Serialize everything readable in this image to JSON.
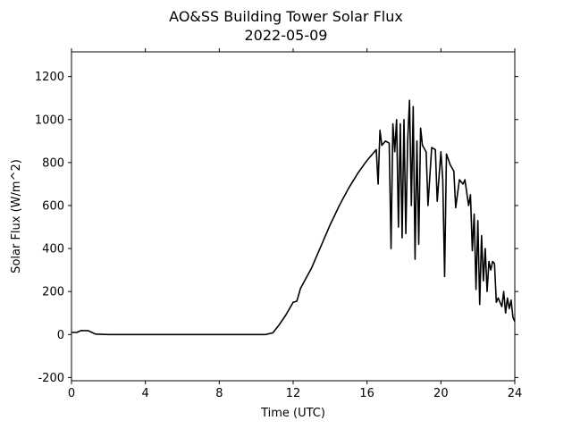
{
  "chart_data": {
    "type": "line",
    "title": "AO&SS Building Tower Solar Flux",
    "subtitle": "2022-05-09",
    "xlabel": "Time (UTC)",
    "ylabel": "Solar Flux (W/m^2)",
    "xlim": [
      0,
      24
    ],
    "xticks": [
      0,
      4,
      8,
      12,
      16,
      20,
      24
    ],
    "ylim": [
      -215,
      1315
    ],
    "yticks": [
      -200,
      0,
      200,
      400,
      600,
      800,
      1000,
      1200
    ],
    "series": [
      {
        "color": "#000000",
        "x": [
          0,
          0.3,
          0.5,
          0.9,
          1.1,
          1.3,
          2,
          4,
          6,
          8,
          10,
          10.5,
          10.9,
          11.2,
          11.6,
          12,
          12.2,
          12.4,
          13,
          13.5,
          14,
          14.5,
          15,
          15.5,
          16,
          16.5,
          16.6,
          16.7,
          16.8,
          17,
          17.2,
          17.3,
          17.4,
          17.5,
          17.6,
          17.7,
          17.8,
          17.9,
          18,
          18.1,
          18.2,
          18.3,
          18.4,
          18.5,
          18.6,
          18.7,
          18.8,
          18.9,
          19,
          19.2,
          19.3,
          19.5,
          19.7,
          19.8,
          20,
          20.1,
          20.2,
          20.3,
          20.5,
          20.7,
          20.8,
          21,
          21.2,
          21.3,
          21.5,
          21.6,
          21.7,
          21.8,
          21.9,
          22,
          22.1,
          22.2,
          22.3,
          22.4,
          22.5,
          22.6,
          22.7,
          22.8,
          22.9,
          23,
          23.1,
          23.3,
          23.4,
          23.5,
          23.6,
          23.7,
          23.8,
          23.9,
          24
        ],
        "values": [
          10,
          10,
          18,
          18,
          10,
          2,
          0,
          0,
          0,
          0,
          0,
          0,
          8,
          40,
          90,
          150,
          155,
          215,
          310,
          410,
          510,
          600,
          680,
          750,
          810,
          860,
          700,
          950,
          880,
          900,
          890,
          400,
          980,
          850,
          1000,
          500,
          980,
          450,
          1000,
          470,
          900,
          1090,
          600,
          1060,
          350,
          900,
          420,
          960,
          880,
          850,
          600,
          870,
          860,
          620,
          850,
          720,
          270,
          840,
          790,
          760,
          590,
          720,
          700,
          720,
          600,
          650,
          390,
          560,
          210,
          530,
          140,
          460,
          250,
          400,
          200,
          340,
          300,
          340,
          330,
          150,
          170,
          130,
          200,
          100,
          170,
          120,
          160,
          80,
          60
        ]
      }
    ]
  }
}
